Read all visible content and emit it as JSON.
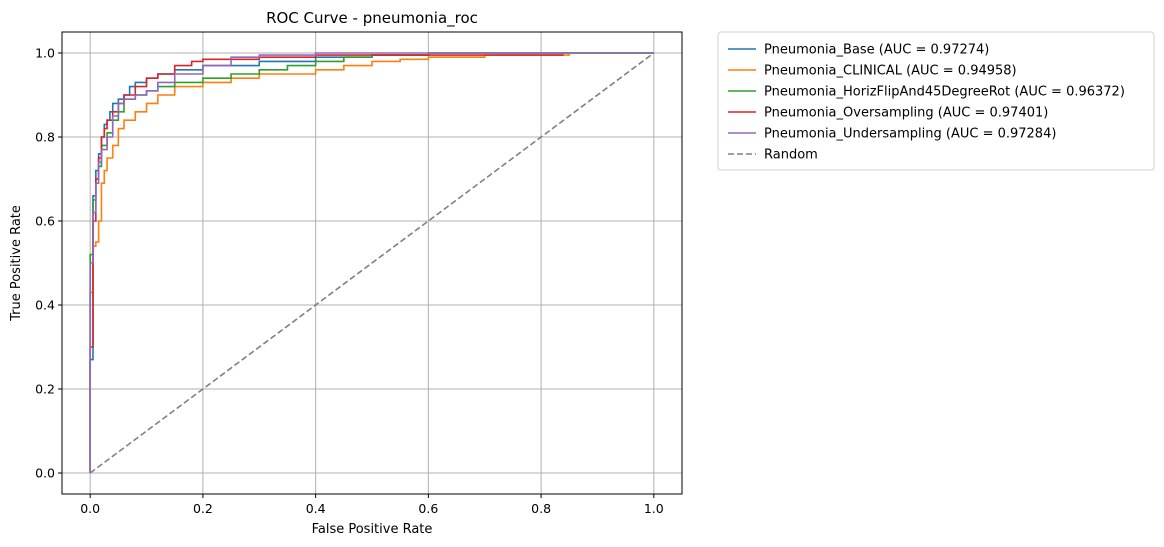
{
  "chart_data": {
    "type": "line",
    "title": "ROC Curve - pneumonia_roc",
    "xlabel": "False Positive Rate",
    "ylabel": "True Positive Rate",
    "xlim": [
      -0.05,
      1.05
    ],
    "ylim": [
      -0.05,
      1.05
    ],
    "xticks": [
      0.0,
      0.2,
      0.4,
      0.6,
      0.8,
      1.0
    ],
    "yticks": [
      0.0,
      0.2,
      0.4,
      0.6,
      0.8,
      1.0
    ],
    "xtick_labels": [
      "0.0",
      "0.2",
      "0.4",
      "0.6",
      "0.8",
      "1.0"
    ],
    "ytick_labels": [
      "0.0",
      "0.2",
      "0.4",
      "0.6",
      "0.8",
      "1.0"
    ],
    "grid": true,
    "legend_position": "outside upper right",
    "series": [
      {
        "name": "Pneumonia_Base (AUC = 0.97274)",
        "color": "#1f77b4",
        "step": true,
        "dashed": false,
        "x": [
          0.0,
          0.0,
          0.005,
          0.005,
          0.01,
          0.01,
          0.015,
          0.02,
          0.025,
          0.03,
          0.035,
          0.04,
          0.05,
          0.06,
          0.07,
          0.08,
          0.1,
          0.12,
          0.15,
          0.2,
          0.3,
          0.4,
          0.5,
          0.6,
          0.7,
          0.8,
          1.0
        ],
        "y": [
          0.0,
          0.27,
          0.6,
          0.66,
          0.7,
          0.72,
          0.76,
          0.8,
          0.83,
          0.84,
          0.86,
          0.88,
          0.89,
          0.9,
          0.92,
          0.93,
          0.94,
          0.95,
          0.96,
          0.97,
          0.98,
          0.99,
          0.995,
          1.0,
          1.0,
          1.0,
          1.0
        ]
      },
      {
        "name": "Pneumonia_CLINICAL (AUC = 0.94958)",
        "color": "#ff7f0e",
        "step": true,
        "dashed": false,
        "x": [
          0.0,
          0.0,
          0.005,
          0.005,
          0.01,
          0.015,
          0.02,
          0.025,
          0.03,
          0.04,
          0.05,
          0.06,
          0.08,
          0.1,
          0.12,
          0.15,
          0.2,
          0.25,
          0.3,
          0.4,
          0.45,
          0.5,
          0.55,
          0.6,
          0.7,
          0.85,
          1.0
        ],
        "y": [
          0.0,
          0.43,
          0.5,
          0.54,
          0.55,
          0.6,
          0.69,
          0.72,
          0.75,
          0.78,
          0.82,
          0.84,
          0.86,
          0.88,
          0.9,
          0.92,
          0.93,
          0.94,
          0.95,
          0.96,
          0.97,
          0.98,
          0.985,
          0.99,
          0.995,
          1.0,
          1.0
        ]
      },
      {
        "name": "Pneumonia_HorizFlipAnd45DegreeRot (AUC = 0.96372)",
        "color": "#2ca02c",
        "step": true,
        "dashed": false,
        "x": [
          0.0,
          0.0,
          0.005,
          0.01,
          0.015,
          0.02,
          0.03,
          0.04,
          0.05,
          0.06,
          0.08,
          0.1,
          0.12,
          0.15,
          0.2,
          0.25,
          0.3,
          0.35,
          0.4,
          0.45,
          0.5,
          0.6,
          0.7,
          0.8,
          1.0
        ],
        "y": [
          0.0,
          0.52,
          0.65,
          0.7,
          0.73,
          0.78,
          0.81,
          0.84,
          0.86,
          0.89,
          0.9,
          0.91,
          0.92,
          0.93,
          0.94,
          0.95,
          0.96,
          0.97,
          0.98,
          0.99,
          0.995,
          1.0,
          1.0,
          1.0,
          1.0
        ]
      },
      {
        "name": "Pneumonia_Oversampling (AUC = 0.97401)",
        "color": "#d62728",
        "step": true,
        "dashed": false,
        "x": [
          0.0,
          0.0,
          0.005,
          0.01,
          0.015,
          0.02,
          0.025,
          0.03,
          0.04,
          0.05,
          0.06,
          0.08,
          0.1,
          0.12,
          0.15,
          0.18,
          0.2,
          0.3,
          0.4,
          0.5,
          0.6,
          0.84
        ],
        "y": [
          0.0,
          0.3,
          0.6,
          0.7,
          0.75,
          0.8,
          0.82,
          0.84,
          0.86,
          0.88,
          0.9,
          0.92,
          0.94,
          0.95,
          0.97,
          0.98,
          0.985,
          0.99,
          0.995,
          0.995,
          0.995,
          0.995
        ]
      },
      {
        "name": "Pneumonia_Undersampling (AUC = 0.97284)",
        "color": "#9467bd",
        "step": true,
        "dashed": false,
        "x": [
          0.0,
          0.0,
          0.005,
          0.01,
          0.015,
          0.02,
          0.03,
          0.04,
          0.05,
          0.06,
          0.08,
          0.1,
          0.12,
          0.15,
          0.2,
          0.25,
          0.3,
          0.4,
          0.5,
          0.6,
          0.8,
          1.0
        ],
        "y": [
          0.0,
          0.5,
          0.62,
          0.69,
          0.74,
          0.77,
          0.8,
          0.85,
          0.88,
          0.89,
          0.9,
          0.91,
          0.93,
          0.95,
          0.97,
          0.99,
          0.995,
          1.0,
          1.0,
          1.0,
          1.0,
          1.0
        ]
      },
      {
        "name": "Random",
        "color": "#808080",
        "step": false,
        "dashed": true,
        "x": [
          0.0,
          1.0
        ],
        "y": [
          0.0,
          1.0
        ]
      }
    ]
  }
}
